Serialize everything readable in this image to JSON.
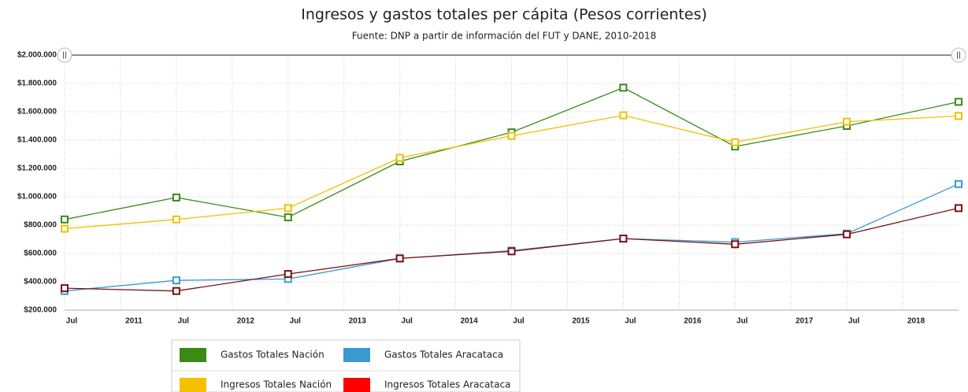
{
  "chart_data": {
    "type": "line",
    "title": "Ingresos y gastos totales per cápita (Pesos corrientes)",
    "subtitle": "Fuente: DNP a partir de información del FUT y DANE, 2010-2018",
    "x": [
      2010.5,
      2011.5,
      2012.5,
      2013.5,
      2014.5,
      2015.5,
      2016.5,
      2017.5,
      2018.5
    ],
    "xlim": [
      2010.5,
      2018.5
    ],
    "xticks": [
      {
        "value": 2010.5,
        "label": "Jul"
      },
      {
        "value": 2011,
        "label": "2011"
      },
      {
        "value": 2011.5,
        "label": "Jul"
      },
      {
        "value": 2012,
        "label": "2012"
      },
      {
        "value": 2012.5,
        "label": "Jul"
      },
      {
        "value": 2013,
        "label": "2013"
      },
      {
        "value": 2013.5,
        "label": "Jul"
      },
      {
        "value": 2014,
        "label": "2014"
      },
      {
        "value": 2014.5,
        "label": "Jul"
      },
      {
        "value": 2015,
        "label": "2015"
      },
      {
        "value": 2015.5,
        "label": "Jul"
      },
      {
        "value": 2016,
        "label": "2016"
      },
      {
        "value": 2016.5,
        "label": "Jul"
      },
      {
        "value": 2017,
        "label": "2017"
      },
      {
        "value": 2017.5,
        "label": "Jul"
      },
      {
        "value": 2018,
        "label": "2018"
      }
    ],
    "ylim": [
      200000,
      2000000
    ],
    "yticks": [
      {
        "value": 200000,
        "label": "$200.000"
      },
      {
        "value": 400000,
        "label": "$400.000"
      },
      {
        "value": 600000,
        "label": "$600.000"
      },
      {
        "value": 800000,
        "label": "$800.000"
      },
      {
        "value": 1000000,
        "label": "$1.000.000"
      },
      {
        "value": 1200000,
        "label": "$1.200.000"
      },
      {
        "value": 1400000,
        "label": "$1.400.000"
      },
      {
        "value": 1600000,
        "label": "$1.600.000"
      },
      {
        "value": 1800000,
        "label": "$1.800.000"
      },
      {
        "value": 2000000,
        "label": "$2.000.000"
      }
    ],
    "grid": true,
    "legend": "bottom",
    "series": [
      {
        "name": "Gastos Totales Nación",
        "color": "#3a8a16",
        "legend_color": "#3a8a16",
        "values": [
          840000,
          995000,
          855000,
          1250000,
          1455000,
          1770000,
          1355000,
          1500000,
          1670000
        ]
      },
      {
        "name": "Gastos Totales Aracataca",
        "color": "#3a9ad0",
        "legend_color": "#3a9ad0",
        "values": [
          335000,
          410000,
          420000,
          565000,
          620000,
          705000,
          680000,
          740000,
          1090000
        ]
      },
      {
        "name": "Ingresos Totales Nación",
        "color": "#f0c000",
        "legend_color": "#f5c000",
        "values": [
          775000,
          840000,
          920000,
          1275000,
          1430000,
          1575000,
          1385000,
          1530000,
          1570000
        ]
      },
      {
        "name": "Ingresos Totales Aracataca",
        "color": "#7b1113",
        "legend_color": "#ff0000",
        "values": [
          355000,
          335000,
          455000,
          565000,
          615000,
          705000,
          665000,
          735000,
          920000
        ]
      }
    ]
  }
}
